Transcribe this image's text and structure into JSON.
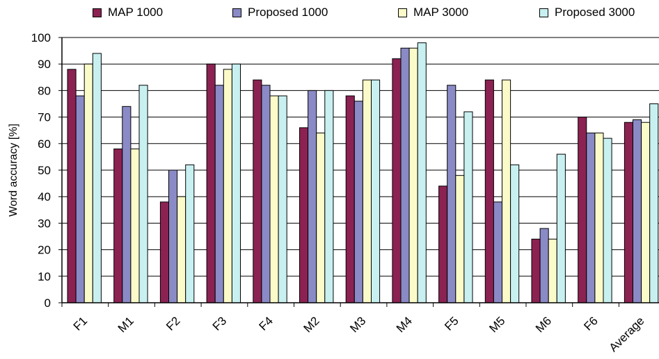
{
  "chart_data": {
    "type": "bar",
    "ylabel": "Word accuracy [%]",
    "ylim": [
      0,
      100
    ],
    "yticks": [
      0,
      10,
      20,
      30,
      40,
      50,
      60,
      70,
      80,
      90,
      100
    ],
    "grid": true,
    "legend_position": "top",
    "categories": [
      "F1",
      "M1",
      "F2",
      "F3",
      "F4",
      "M2",
      "M3",
      "M4",
      "F5",
      "M5",
      "M6",
      "F6",
      "Average"
    ],
    "series": [
      {
        "name": "MAP 1000",
        "color": "#8b2252",
        "values": [
          88,
          58,
          38,
          90,
          84,
          66,
          78,
          92,
          44,
          84,
          24,
          70,
          68
        ]
      },
      {
        "name": "Proposed 1000",
        "color": "#8a8ac6",
        "values": [
          78,
          74,
          50,
          82,
          82,
          80,
          76,
          96,
          82,
          38,
          28,
          64,
          69
        ]
      },
      {
        "name": "MAP 3000",
        "color": "#fbfbc9",
        "values": [
          90,
          58,
          40,
          88,
          78,
          64,
          84,
          96,
          48,
          84,
          24,
          64,
          68
        ]
      },
      {
        "name": "Proposed 3000",
        "color": "#c9f0f0",
        "values": [
          94,
          82,
          52,
          90,
          78,
          80,
          84,
          98,
          72,
          52,
          56,
          62,
          75
        ]
      }
    ]
  }
}
